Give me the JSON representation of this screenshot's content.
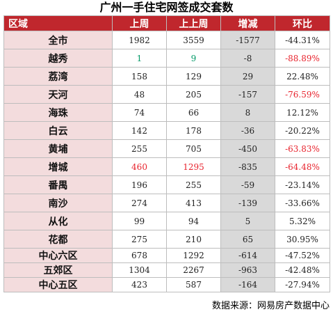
{
  "title": "广州一手住宅网签成交套数",
  "columns": [
    "区域",
    "上周",
    "上上周",
    "增减",
    "环比"
  ],
  "rows": [
    {
      "region": "全市",
      "last_week": "1982",
      "prev_week": "3559",
      "change": "-1577",
      "ratio": "-44.31%"
    },
    {
      "region": "越秀",
      "last_week": "1",
      "prev_week": "9",
      "change": "-8",
      "ratio": "-88.89%"
    },
    {
      "region": "荔湾",
      "last_week": "158",
      "prev_week": "129",
      "change": "29",
      "ratio": "22.48%"
    },
    {
      "region": "天河",
      "last_week": "48",
      "prev_week": "205",
      "change": "-157",
      "ratio": "-76.59%"
    },
    {
      "region": "海珠",
      "last_week": "74",
      "prev_week": "66",
      "change": "8",
      "ratio": "12.12%"
    },
    {
      "region": "白云",
      "last_week": "142",
      "prev_week": "178",
      "change": "-36",
      "ratio": "-20.22%"
    },
    {
      "region": "黄埔",
      "last_week": "255",
      "prev_week": "705",
      "change": "-450",
      "ratio": "-63.83%"
    },
    {
      "region": "增城",
      "last_week": "460",
      "prev_week": "1295",
      "change": "-835",
      "ratio": "-64.48%"
    },
    {
      "region": "番禺",
      "last_week": "196",
      "prev_week": "255",
      "change": "-59",
      "ratio": "-23.14%"
    },
    {
      "region": "南沙",
      "last_week": "274",
      "prev_week": "413",
      "change": "-139",
      "ratio": "-33.66%"
    },
    {
      "region": "从化",
      "last_week": "99",
      "prev_week": "94",
      "change": "5",
      "ratio": "5.32%"
    },
    {
      "region": "花都",
      "last_week": "275",
      "prev_week": "210",
      "change": "65",
      "ratio": "30.95%"
    },
    {
      "region": "中心六区",
      "last_week": "678",
      "prev_week": "1292",
      "change": "-614",
      "ratio": "-47.52%"
    },
    {
      "region": "五郊区",
      "last_week": "1304",
      "prev_week": "2267",
      "change": "-963",
      "ratio": "-42.48%"
    },
    {
      "region": "中心五区",
      "last_week": "423",
      "prev_week": "587",
      "change": "-164",
      "ratio": "-27.94%"
    }
  ],
  "source": "数据来源：网易房产数据中心",
  "colors": {
    "header": "#c0272d",
    "region_bg": "#f3dcdd",
    "change_bg": "#d9d9d9",
    "highlight_red": "#e8222c",
    "highlight_green": "#009966"
  }
}
